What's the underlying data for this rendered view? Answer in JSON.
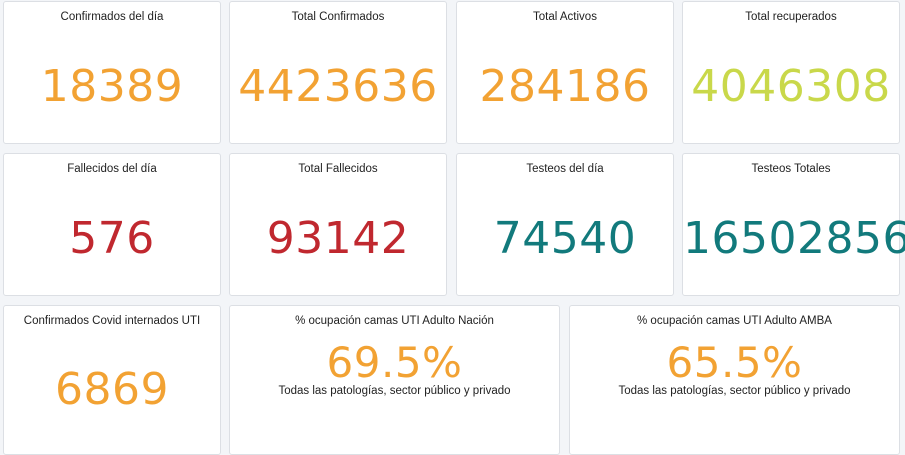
{
  "colors": {
    "orange": "#f2a233",
    "yellow_green": "#c9d84a",
    "red": "#c0282f",
    "teal": "#127a7c"
  },
  "cards": {
    "confirmados_dia": {
      "title": "Confirmados del día",
      "value": "18389",
      "color": "#f2a233"
    },
    "total_confirmados": {
      "title": "Total Confirmados",
      "value": "4423636",
      "color": "#f2a233"
    },
    "total_activos": {
      "title": "Total Activos",
      "value": "284186",
      "color": "#f2a233"
    },
    "total_recuperados": {
      "title": "Total recuperados",
      "value": "4046308",
      "color": "#c9d84a"
    },
    "fallecidos_dia": {
      "title": "Fallecidos del día",
      "value": "576",
      "color": "#c0282f"
    },
    "total_fallecidos": {
      "title": "Total Fallecidos",
      "value": "93142",
      "color": "#c0282f"
    },
    "testeos_dia": {
      "title": "Testeos del día",
      "value": "74540",
      "color": "#127a7c"
    },
    "testeos_totales": {
      "title": "Testeos Totales",
      "value": "16502856",
      "color": "#127a7c"
    },
    "confirmados_uti": {
      "title": "Confirmados Covid internados UTI",
      "value": "6869",
      "color": "#f2a233"
    },
    "ocupacion_nacion": {
      "title": "% ocupación camas UTI Adulto Nación",
      "value": "69.5%",
      "subtitle": "Todas las patologías, sector público y privado",
      "color": "#f2a233"
    },
    "ocupacion_amba": {
      "title": "% ocupación camas UTI Adulto AMBA",
      "value": "65.5%",
      "subtitle": "Todas las patologías, sector público y privado",
      "color": "#f2a233"
    }
  }
}
